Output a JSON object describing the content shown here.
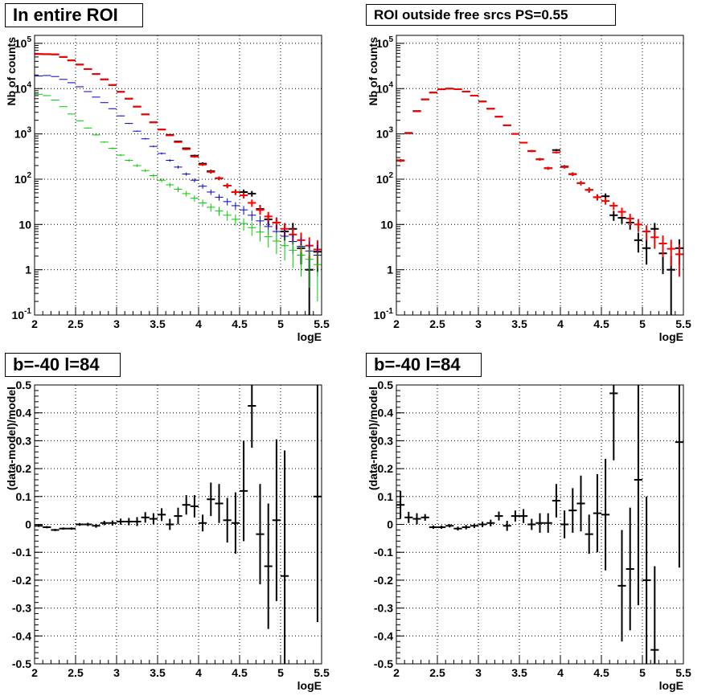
{
  "chart_data": [
    {
      "type": "scatter",
      "title": "In entire ROI",
      "xlabel": "logE",
      "ylabel": "Nb of counts",
      "xlim": [
        2,
        5.5
      ],
      "ylim": [
        0.1,
        150000
      ],
      "yscale": "log",
      "grid": true,
      "x_ticks": [
        "2",
        "2.5",
        "3",
        "3.5",
        "4",
        "4.5",
        "5",
        "5.5"
      ],
      "y_ticks": [
        "10^-1",
        "1",
        "10",
        "10^2",
        "10^3",
        "10^4",
        "10^5"
      ],
      "series": [
        {
          "color": "#000000",
          "x": [
            2.05,
            2.15,
            2.25,
            2.35,
            2.45,
            2.55,
            2.65,
            2.75,
            2.85,
            2.95,
            3.05,
            3.15,
            3.25,
            3.35,
            3.45,
            3.55,
            3.65,
            3.75,
            3.85,
            3.95,
            4.05,
            4.15,
            4.25,
            4.35,
            4.45,
            4.55,
            4.65,
            4.75,
            4.85,
            4.95,
            5.05,
            5.15,
            5.25,
            5.35,
            5.45
          ],
          "y": [
            58000,
            57500,
            57000,
            50000,
            42000,
            34000,
            27000,
            21000,
            16000,
            12000,
            8500,
            6000,
            4000,
            2700,
            1800,
            1250,
            950,
            680,
            480,
            330,
            220,
            150,
            105,
            72,
            52,
            52,
            48,
            22,
            13,
            11,
            7,
            8,
            3,
            1,
            2.5
          ],
          "yerr": [
            240,
            240,
            240,
            224,
            205,
            184,
            164,
            145,
            126,
            110,
            92,
            77,
            63,
            52,
            42,
            35,
            31,
            26,
            22,
            18,
            15,
            12,
            10,
            8.5,
            7.2,
            7.2,
            6.9,
            4.7,
            3.6,
            3.3,
            2.6,
            2.8,
            1.7,
            1,
            1.6
          ]
        },
        {
          "color": "#ff0000",
          "x": [
            2.05,
            2.15,
            2.25,
            2.35,
            2.45,
            2.55,
            2.65,
            2.75,
            2.85,
            2.95,
            3.05,
            3.15,
            3.25,
            3.35,
            3.45,
            3.55,
            3.65,
            3.75,
            3.85,
            3.95,
            4.05,
            4.15,
            4.25,
            4.35,
            4.45,
            4.55,
            4.65,
            4.75,
            4.85,
            4.95,
            5.05,
            5.15,
            5.25,
            5.35,
            5.45
          ],
          "y": [
            58000,
            58000,
            57000,
            50000,
            42000,
            34000,
            27000,
            21000,
            16000,
            12000,
            8500,
            6000,
            4000,
            2700,
            1800,
            1250,
            930,
            660,
            460,
            315,
            210,
            145,
            105,
            72,
            52,
            44,
            30,
            21,
            15,
            11,
            8,
            6,
            4.5,
            3.4,
            2.8
          ],
          "yerr": [
            240,
            240,
            240,
            224,
            205,
            184,
            164,
            145,
            126,
            110,
            92,
            77,
            63,
            52,
            42,
            35,
            30,
            26,
            21,
            18,
            14,
            12,
            10,
            8.5,
            7.2,
            6.6,
            5.5,
            4.6,
            3.9,
            3.3,
            2.8,
            2.4,
            2.1,
            1.8,
            1.7
          ]
        },
        {
          "color": "#0000cc",
          "x": [
            2.05,
            2.15,
            2.25,
            2.35,
            2.45,
            2.55,
            2.65,
            2.75,
            2.85,
            2.95,
            3.05,
            3.15,
            3.25,
            3.35,
            3.45,
            3.55,
            3.65,
            3.75,
            3.85,
            3.95,
            4.05,
            4.15,
            4.25,
            4.35,
            4.45,
            4.55,
            4.65,
            4.75,
            4.85,
            4.95,
            5.05,
            5.15,
            5.25,
            5.35,
            5.45
          ],
          "y": [
            19000,
            19500,
            18500,
            16000,
            13500,
            11000,
            8600,
            6500,
            4900,
            3600,
            2500,
            1700,
            1150,
            780,
            530,
            370,
            260,
            185,
            130,
            95,
            70,
            52,
            40,
            32,
            26,
            21,
            16,
            12,
            9,
            7,
            5.5,
            4.2,
            3.3,
            2.6,
            2.1
          ],
          "yerr": [
            138,
            140,
            136,
            126,
            116,
            105,
            93,
            81,
            70,
            60,
            50,
            41,
            34,
            28,
            23,
            19,
            16,
            14,
            11,
            9.7,
            8.4,
            7.2,
            6.3,
            5.7,
            5.1,
            4.6,
            4,
            3.5,
            3,
            2.6,
            2.3,
            2,
            1.8,
            1.6,
            1.4
          ]
        },
        {
          "color": "#00cc00",
          "x": [
            2.05,
            2.15,
            2.25,
            2.35,
            2.45,
            2.55,
            2.65,
            2.75,
            2.85,
            2.95,
            3.05,
            3.15,
            3.25,
            3.35,
            3.45,
            3.55,
            3.65,
            3.75,
            3.85,
            3.95,
            4.05,
            4.15,
            4.25,
            4.35,
            4.45,
            4.55,
            4.65,
            4.75,
            4.85,
            4.95,
            5.05,
            5.15,
            5.25,
            5.35,
            5.45
          ],
          "y": [
            7500,
            7000,
            5600,
            4000,
            2750,
            1950,
            1350,
            950,
            660,
            480,
            340,
            260,
            200,
            155,
            120,
            95,
            75,
            60,
            48,
            38,
            30,
            24,
            20,
            16,
            13,
            10.5,
            8.5,
            6.8,
            5.4,
            4.3,
            3.4,
            2.7,
            2.1,
            1.7,
            1.3
          ],
          "yerr": [
            87,
            84,
            75,
            63,
            52,
            44,
            37,
            31,
            26,
            22,
            18,
            16,
            14,
            12,
            11,
            9.7,
            8.7,
            7.7,
            6.9,
            6.2,
            5.5,
            4.9,
            4.5,
            4,
            3.6,
            3.2,
            2.9,
            2.6,
            2.3,
            2.1,
            1.8,
            1.6,
            1.4,
            1.3,
            1.1
          ]
        }
      ]
    },
    {
      "type": "scatter",
      "title": "ROI outside free srcs PS=0.55",
      "xlabel": "logE",
      "ylabel": "Nb of counts",
      "xlim": [
        2,
        5.5
      ],
      "ylim": [
        0.1,
        150000
      ],
      "yscale": "log",
      "grid": true,
      "x_ticks": [
        "2",
        "2.5",
        "3",
        "3.5",
        "4",
        "4.5",
        "5",
        "5.5"
      ],
      "y_ticks": [
        "10^-1",
        "1",
        "10",
        "10^2",
        "10^3",
        "10^4",
        "10^5"
      ],
      "series": [
        {
          "color": "#000000",
          "x": [
            2.05,
            2.15,
            2.25,
            2.35,
            2.45,
            2.55,
            2.65,
            2.75,
            2.85,
            2.95,
            3.05,
            3.15,
            3.25,
            3.35,
            3.45,
            3.55,
            3.65,
            3.75,
            3.85,
            3.95,
            4.05,
            4.15,
            4.25,
            4.35,
            4.45,
            4.55,
            4.65,
            4.75,
            4.85,
            4.95,
            5.05,
            5.15,
            5.25,
            5.35,
            5.45
          ],
          "y": [
            260,
            1050,
            3200,
            5800,
            8200,
            9700,
            10000,
            9700,
            8600,
            7000,
            5200,
            3600,
            2400,
            1550,
            1000,
            640,
            420,
            275,
            175,
            440,
            190,
            130,
            82,
            58,
            40,
            42,
            16,
            14,
            11,
            4.5,
            3,
            8,
            2.3,
            1,
            3
          ],
          "yerr": [
            16,
            32,
            57,
            76,
            91,
            98,
            100,
            98,
            93,
            84,
            72,
            60,
            49,
            39,
            32,
            25,
            20,
            17,
            13,
            21,
            14,
            11,
            9,
            7.6,
            6.3,
            6.5,
            4,
            3.7,
            3.3,
            2.1,
            1.7,
            2.8,
            1.5,
            1,
            1.7
          ]
        },
        {
          "color": "#ff0000",
          "x": [
            2.05,
            2.15,
            2.25,
            2.35,
            2.45,
            2.55,
            2.65,
            2.75,
            2.85,
            2.95,
            3.05,
            3.15,
            3.25,
            3.35,
            3.45,
            3.55,
            3.65,
            3.75,
            3.85,
            3.95,
            4.05,
            4.15,
            4.25,
            4.35,
            4.45,
            4.55,
            4.65,
            4.75,
            4.85,
            4.95,
            5.05,
            5.15,
            5.25,
            5.35,
            5.45
          ],
          "y": [
            255,
            1030,
            3150,
            5750,
            8150,
            9650,
            10000,
            9700,
            8600,
            7000,
            5200,
            3600,
            2400,
            1550,
            1000,
            640,
            415,
            275,
            175,
            390,
            185,
            128,
            82,
            58,
            40,
            33,
            26,
            19,
            13.5,
            10,
            7,
            5.2,
            3.8,
            2.9,
            2.2
          ],
          "yerr": [
            16,
            32,
            56,
            76,
            90,
            98,
            100,
            98,
            93,
            84,
            72,
            60,
            49,
            39,
            32,
            25,
            20,
            17,
            13,
            20,
            14,
            11,
            9,
            7.6,
            6.3,
            5.7,
            5.1,
            4.4,
            3.7,
            3.2,
            2.6,
            2.3,
            1.9,
            1.7,
            1.5
          ]
        }
      ]
    },
    {
      "type": "scatter",
      "title": "b=-40 l=84",
      "xlabel": "logE",
      "ylabel": "(data-model)/model",
      "xlim": [
        2,
        5.5
      ],
      "ylim": [
        -0.5,
        0.5
      ],
      "grid": true,
      "x_ticks": [
        "2",
        "2.5",
        "3",
        "3.5",
        "4",
        "4.5",
        "5",
        "5.5"
      ],
      "y_ticks": [
        "-0.5",
        "-0.4",
        "-0.3",
        "-0.2",
        "-0.1",
        "0",
        "0.1",
        "0.2",
        "0.3",
        "0.4",
        "0.5"
      ],
      "series": [
        {
          "color": "#000000",
          "x": [
            2.05,
            2.15,
            2.25,
            2.35,
            2.45,
            2.55,
            2.65,
            2.75,
            2.85,
            2.95,
            3.05,
            3.15,
            3.25,
            3.35,
            3.45,
            3.55,
            3.65,
            3.75,
            3.85,
            3.95,
            4.05,
            4.15,
            4.25,
            4.35,
            4.45,
            4.55,
            4.65,
            4.75,
            4.85,
            4.95,
            5.05,
            5.45
          ],
          "y": [
            -0.005,
            -0.01,
            -0.02,
            -0.015,
            -0.015,
            0.0,
            0.0,
            -0.005,
            0.005,
            0.005,
            0.01,
            0.01,
            0.01,
            0.025,
            0.02,
            0.035,
            0.0,
            0.03,
            0.07,
            0.065,
            0.005,
            0.09,
            0.075,
            0.015,
            0.005,
            0.12,
            0.425,
            -0.035,
            -0.15,
            0.015,
            -0.185,
            0.1
          ],
          "yerr": [
            0.004,
            0.004,
            0.004,
            0.004,
            0.004,
            0.005,
            0.006,
            0.007,
            0.008,
            0.009,
            0.011,
            0.013,
            0.016,
            0.019,
            0.02,
            0.023,
            0.02,
            0.03,
            0.035,
            0.04,
            0.03,
            0.06,
            0.07,
            0.08,
            0.11,
            0.18,
            0.15,
            0.18,
            0.225,
            0.29,
            0.45,
            0.45
          ]
        }
      ]
    },
    {
      "type": "scatter",
      "title": "b=-40 l=84",
      "xlabel": "logE",
      "ylabel": "(data-model)/model",
      "xlim": [
        2,
        5.5
      ],
      "ylim": [
        -0.5,
        0.5
      ],
      "grid": true,
      "x_ticks": [
        "2",
        "2.5",
        "3",
        "3.5",
        "4",
        "4.5",
        "5",
        "5.5"
      ],
      "y_ticks": [
        "-0.5",
        "-0.4",
        "-0.3",
        "-0.2",
        "-0.1",
        "0",
        "0.1",
        "0.2",
        "0.3",
        "0.4",
        "0.5"
      ],
      "series": [
        {
          "color": "#000000",
          "x": [
            2.05,
            2.15,
            2.25,
            2.35,
            2.45,
            2.55,
            2.65,
            2.75,
            2.85,
            2.95,
            3.05,
            3.15,
            3.25,
            3.35,
            3.45,
            3.55,
            3.65,
            3.75,
            3.85,
            3.95,
            4.05,
            4.15,
            4.25,
            4.35,
            4.45,
            4.55,
            4.65,
            4.75,
            4.85,
            4.95,
            5.05,
            5.15,
            5.45
          ],
          "y": [
            0.07,
            0.025,
            0.02,
            0.025,
            -0.01,
            -0.01,
            -0.005,
            -0.015,
            -0.01,
            -0.005,
            0.0,
            0.005,
            0.03,
            -0.005,
            0.03,
            0.03,
            0.0,
            0.005,
            0.005,
            0.085,
            0.0,
            0.05,
            0.075,
            -0.035,
            0.04,
            0.035,
            0.47,
            -0.22,
            -0.16,
            0.16,
            -0.2,
            -0.45,
            0.295
          ],
          "yerr": [
            0.05,
            0.02,
            0.02,
            0.012,
            0.006,
            0.006,
            0.006,
            0.007,
            0.008,
            0.008,
            0.01,
            0.012,
            0.016,
            0.018,
            0.02,
            0.025,
            0.02,
            0.035,
            0.035,
            0.06,
            0.05,
            0.08,
            0.1,
            0.07,
            0.14,
            0.2,
            0.24,
            0.2,
            0.22,
            0.45,
            0.3,
            0.3,
            0.45
          ]
        }
      ]
    }
  ]
}
